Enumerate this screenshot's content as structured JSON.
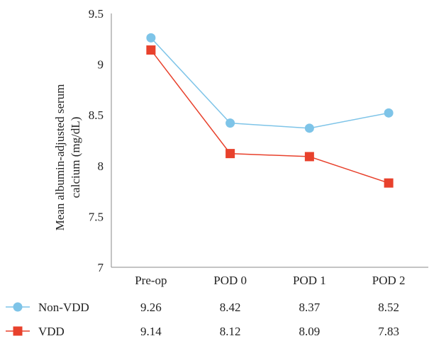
{
  "chart_data": {
    "type": "line",
    "categories": [
      "Pre-op",
      "POD 0",
      "POD 1",
      "POD 2"
    ],
    "ylabel_lines": [
      "Mean albumin-adjusted serum",
      "calcium (mg/dL)"
    ],
    "ylim": [
      7,
      9.5
    ],
    "yticks": [
      "7",
      "7.5",
      "8",
      "8.5",
      "9",
      "9.5"
    ],
    "grid": false,
    "legend": "data table below chart",
    "series": [
      {
        "name": "Non-VDD",
        "values": [
          9.26,
          8.42,
          8.37,
          8.52
        ],
        "labels": [
          "9.26",
          "8.42",
          "8.37",
          "8.52"
        ],
        "color": "#7EC4E8",
        "marker": "circle"
      },
      {
        "name": "VDD",
        "values": [
          9.14,
          8.12,
          8.09,
          7.83
        ],
        "labels": [
          "9.14",
          "8.12",
          "8.09",
          "7.83"
        ],
        "color": "#E8412C",
        "marker": "square"
      }
    ]
  }
}
